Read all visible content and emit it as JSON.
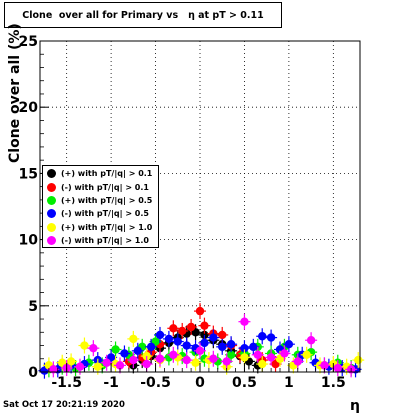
{
  "title": "Clone  over all for Primary vs   η at pT > 0.11",
  "datestamp": "Sat Oct 17 20:21:19 2020",
  "chart_data": {
    "type": "scatter",
    "xlabel": "η",
    "ylabel": "Clone  over all (%)",
    "xlim": [
      -1.8,
      1.8
    ],
    "ylim": [
      0,
      25
    ],
    "xticks": [
      "-1.5",
      "-1",
      "-0.5",
      "0",
      "0.5",
      "1",
      "1.5"
    ],
    "xtick_values": [
      -1.5,
      -1,
      -0.5,
      0,
      0.5,
      1,
      1.5
    ],
    "yticks": [
      "0",
      "5",
      "10",
      "15",
      "20",
      "25"
    ],
    "ytick_values": [
      0,
      5,
      10,
      15,
      20,
      25
    ],
    "grid": true,
    "legend_position": "left-middle",
    "series": [
      {
        "name": "(+) with pT/|q| > 0.1",
        "color": "#000000",
        "x": [
          -0.55,
          -0.45,
          -0.35,
          -0.25,
          -0.15,
          -0.05,
          0.05,
          0.15,
          0.25,
          0.35,
          -0.65,
          0.45,
          0.55,
          -0.75,
          0.65
        ],
        "y": [
          1.2,
          1.8,
          2.2,
          2.6,
          2.9,
          3.0,
          2.8,
          2.4,
          2.1,
          1.6,
          0.9,
          1.2,
          0.8,
          0.5,
          0.5
        ]
      },
      {
        "name": "(-) with pT/|q| > 0.1",
        "color": "#ff0000",
        "x": [
          -0.55,
          -0.45,
          -0.3,
          -0.2,
          -0.1,
          0.0,
          0.05,
          0.15,
          0.25,
          0.35,
          -0.65,
          0.45,
          -0.8,
          0.7,
          0.85
        ],
        "y": [
          1.5,
          2.1,
          3.3,
          3.1,
          3.4,
          4.6,
          3.5,
          2.9,
          2.8,
          2.0,
          1.1,
          1.3,
          0.8,
          0.9,
          0.6
        ]
      },
      {
        "name": "(+) with pT/|q| > 0.5",
        "color": "#00ee00",
        "x": [
          -1.7,
          -1.55,
          -1.4,
          -1.25,
          -1.1,
          -0.95,
          -0.8,
          -0.65,
          -0.5,
          -0.35,
          -0.2,
          -0.05,
          0.05,
          0.2,
          0.35,
          0.5,
          0.65,
          0.8,
          0.95,
          1.1,
          1.25,
          1.4,
          1.55,
          1.7
        ],
        "y": [
          0.2,
          0.4,
          0.3,
          0.7,
          0.5,
          1.7,
          1.3,
          1.9,
          2.3,
          1.1,
          1.2,
          1.5,
          1.0,
          0.8,
          1.3,
          1.4,
          1.9,
          1.4,
          1.9,
          1.3,
          1.5,
          0.5,
          0.7,
          0.3
        ]
      },
      {
        "name": "(-) with pT/|q| > 0.5",
        "color": "#0000ff",
        "x": [
          -1.75,
          -1.6,
          -1.45,
          -1.3,
          -1.15,
          -1.0,
          -0.85,
          -0.7,
          -0.55,
          -0.45,
          -0.35,
          -0.25,
          -0.15,
          -0.05,
          0.05,
          0.15,
          0.25,
          0.35,
          0.5,
          0.6,
          0.7,
          0.8,
          0.9,
          1.0,
          1.15,
          1.3,
          1.45,
          1.6,
          1.75
        ],
        "y": [
          0.1,
          0.2,
          0.5,
          0.6,
          0.9,
          1.1,
          1.4,
          1.6,
          1.9,
          2.8,
          2.5,
          2.3,
          2.0,
          1.8,
          2.2,
          2.6,
          1.9,
          2.1,
          1.8,
          1.9,
          2.7,
          2.6,
          1.7,
          2.1,
          1.3,
          0.7,
          0.4,
          0.3,
          0.2
        ]
      },
      {
        "name": "(+) with pT/|q| > 1.0",
        "color": "#ffff00",
        "x": [
          -1.7,
          -1.55,
          -1.45,
          -1.3,
          -1.15,
          -0.95,
          -0.75,
          -0.6,
          -0.45,
          -0.25,
          -0.05,
          0.1,
          0.3,
          0.5,
          0.7,
          0.9,
          1.05,
          1.2,
          1.35,
          1.5,
          1.65,
          1.78
        ],
        "y": [
          0.5,
          0.7,
          0.8,
          2.0,
          0.4,
          0.6,
          2.5,
          1.2,
          0.9,
          1.1,
          0.7,
          0.9,
          0.4,
          1.1,
          0.6,
          1.0,
          0.5,
          1.3,
          0.5,
          0.6,
          0.4,
          0.9
        ]
      },
      {
        "name": "(-) with pT/|q| > 1.0",
        "color": "#ff00ff",
        "x": [
          -1.65,
          -1.5,
          -1.35,
          -1.2,
          -1.05,
          -0.9,
          -0.75,
          -0.6,
          -0.45,
          -0.3,
          -0.15,
          0.0,
          0.15,
          0.3,
          0.5,
          0.65,
          0.8,
          0.95,
          1.1,
          1.25,
          1.4,
          1.55,
          1.7
        ],
        "y": [
          0.2,
          0.3,
          0.4,
          1.8,
          0.7,
          0.5,
          0.9,
          0.6,
          1.0,
          1.3,
          0.9,
          1.6,
          1.0,
          0.8,
          3.8,
          1.3,
          1.1,
          1.4,
          0.8,
          2.4,
          0.5,
          0.3,
          0.2
        ]
      }
    ]
  }
}
